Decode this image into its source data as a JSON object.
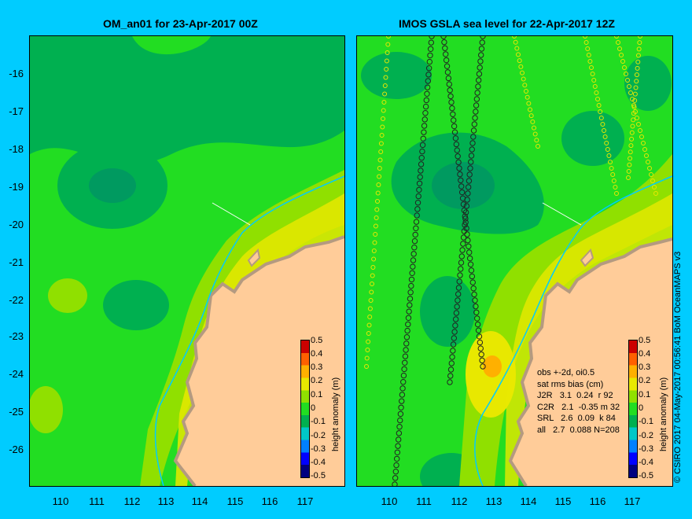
{
  "left_panel": {
    "title": "OM_an01 for 23-Apr-2017 00Z"
  },
  "right_panel": {
    "title": "IMOS GSLA sea level  for 22-Apr-2017 12Z"
  },
  "y_axis": {
    "labels": [
      "-16",
      "-17",
      "-18",
      "-19",
      "-20",
      "-21",
      "-22",
      "-23",
      "-24",
      "-25",
      "-26"
    ]
  },
  "x_axis": {
    "labels": [
      "110",
      "111",
      "112",
      "113",
      "114",
      "115",
      "116",
      "117"
    ]
  },
  "colorbar": {
    "label": "height anomaly (m)",
    "ticks": [
      "0.5",
      "0.4",
      "0.3",
      "0.2",
      "0.1",
      "0",
      "-0.1",
      "-0.2",
      "-0.3",
      "-0.4",
      "-0.5"
    ],
    "range_m": [
      -0.5,
      0.5
    ],
    "colors": [
      "#000080",
      "#0000ff",
      "#0080ff",
      "#00c8c8",
      "#00b050",
      "#22dd22",
      "#90e000",
      "#e8e800",
      "#ffb000",
      "#ff6000",
      "#cc0000"
    ]
  },
  "stats": {
    "lines": [
      "obs +-2d, oi0.5",
      "sat rms bias (cm)",
      "J2R   3.1  0.24  r 92",
      "C2R   2.1  -0.35 m 32",
      "SRL   2.6  0.09  k 84",
      "all   2.7  0.088 N=208"
    ]
  },
  "credit": "© CSIRO 2017   04-May-2017 00:56:41 BoM OceanMAPS v3",
  "map": {
    "lon_range": [
      109.2,
      118.0
    ],
    "lat_range": [
      -27.0,
      -15.1
    ],
    "land_color": "#ffcc99",
    "coast_color": "#b49a80",
    "shelf_line_color": "#00ccff"
  }
}
